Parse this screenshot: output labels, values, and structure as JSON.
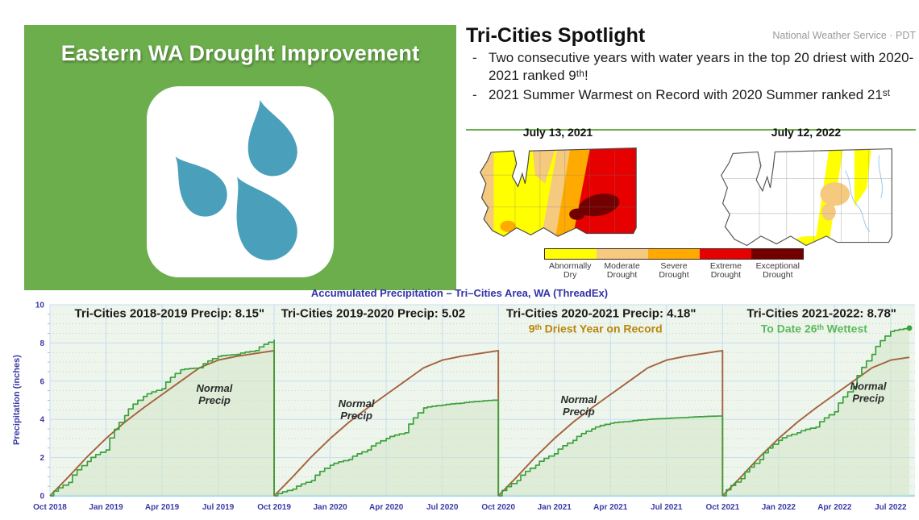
{
  "banner": {
    "title": "Eastern WA Drought Improvement",
    "bg": "#6cae4c",
    "droplet_color": "#4a9fba",
    "icon": "water-droplets"
  },
  "spotlight": {
    "title": "Tri-Cities Spotlight",
    "source": "National Weather Service · PDT",
    "bullets": [
      "Two consecutive years with water years in the top 20 driest with 2020-2021 ranked 9ᵗʰ!",
      "2021 Summer Warmest on Record with 2020 Summer ranked 21ˢᵗ"
    ],
    "maps": [
      {
        "date": "July 13, 2021"
      },
      {
        "date": "July 12, 2022"
      }
    ],
    "legend": [
      {
        "line1": "Abnormally",
        "line2": "Dry",
        "color": "#FFFF00"
      },
      {
        "line1": "Moderate",
        "line2": "Drought",
        "color": "#F5CA7F"
      },
      {
        "line1": "Severe",
        "line2": "Drought",
        "color": "#FFAA00"
      },
      {
        "line1": "Extreme",
        "line2": "Drought",
        "color": "#E60000"
      },
      {
        "line1": "Exceptional",
        "line2": "Drought",
        "color": "#730000"
      }
    ]
  },
  "chart_data": {
    "type": "area",
    "title": "Accumulated Precipitation – Tri–Cities Area, WA (ThreadEx)",
    "ylabel": "Precipitation (inches)",
    "ylim": [
      0,
      10
    ],
    "y_ticks": [
      0,
      2,
      4,
      6,
      8,
      10
    ],
    "x_ticks": [
      "Oct 2018",
      "Jan 2019",
      "Apr 2019",
      "Jul 2019",
      "Oct 2019",
      "Jan 2020",
      "Apr 2020",
      "Jul 2020",
      "Oct 2020",
      "Jan 2021",
      "Apr 2021",
      "Jul 2021",
      "Oct 2021",
      "Jan 2022",
      "Apr 2022",
      "Jul 2022"
    ],
    "grid": true,
    "legend_position": "none",
    "series_colors": {
      "actual": "#3ba03b",
      "normal": "#a4623c"
    },
    "panels": [
      {
        "label": "Tri-Cities  2018-2019 Precip: 8.15\"",
        "sublabel": "",
        "sublabel_color": "",
        "normal_label": "Normal Precip",
        "start_month": 0,
        "total_actual": 8.15,
        "actual": [
          0,
          0.7,
          1.8,
          2.4,
          4.2,
          5.2,
          5.6,
          6.6,
          6.7,
          7.3,
          7.4,
          7.6,
          8.15
        ],
        "normal": [
          0,
          1.0,
          2.05,
          3.0,
          3.85,
          4.6,
          5.3,
          6.0,
          6.7,
          7.1,
          7.3,
          7.45,
          7.6
        ]
      },
      {
        "label": "Tri-Cities  2019-2020 Precip: 5.02",
        "sublabel": "",
        "sublabel_color": "",
        "normal_label": "Normal Precip",
        "start_month": 12,
        "total_actual": 5.02,
        "actual": [
          0,
          0.35,
          0.8,
          1.6,
          1.9,
          2.4,
          3.0,
          3.3,
          4.6,
          4.75,
          4.85,
          4.95,
          5.02
        ],
        "normal": [
          0,
          1.0,
          2.05,
          3.0,
          3.85,
          4.6,
          5.3,
          6.0,
          6.7,
          7.1,
          7.3,
          7.45,
          7.6
        ]
      },
      {
        "label": "Tri-Cities  2020-2021 Precip: 4.18\"",
        "sublabel": "9ᵗʰ Driest Year on Record",
        "sublabel_color": "#b8860b",
        "normal_label": "Normal Precip",
        "start_month": 24,
        "total_actual": 4.18,
        "actual": [
          0,
          0.8,
          1.6,
          2.2,
          2.9,
          3.5,
          3.8,
          3.9,
          4.0,
          4.05,
          4.1,
          4.15,
          4.18
        ],
        "normal": [
          0,
          1.0,
          2.05,
          3.0,
          3.85,
          4.6,
          5.3,
          6.0,
          6.7,
          7.1,
          7.3,
          7.45,
          7.6
        ]
      },
      {
        "label": "Tri-Cities  2021-2022: 8.78\"",
        "sublabel": "To Date 26ᵗʰ Wettest",
        "sublabel_color": "#5cb85c",
        "normal_label": "Normal Precip",
        "start_month": 36,
        "total_actual": 8.78,
        "end_marker": true,
        "actual": [
          0,
          0.9,
          1.9,
          2.9,
          3.3,
          3.6,
          4.4,
          5.7,
          7.4,
          8.6,
          8.78
        ],
        "normal": [
          0,
          1.0,
          2.05,
          3.0,
          3.85,
          4.6,
          5.3,
          6.0,
          6.7,
          7.1,
          7.25
        ]
      }
    ]
  }
}
